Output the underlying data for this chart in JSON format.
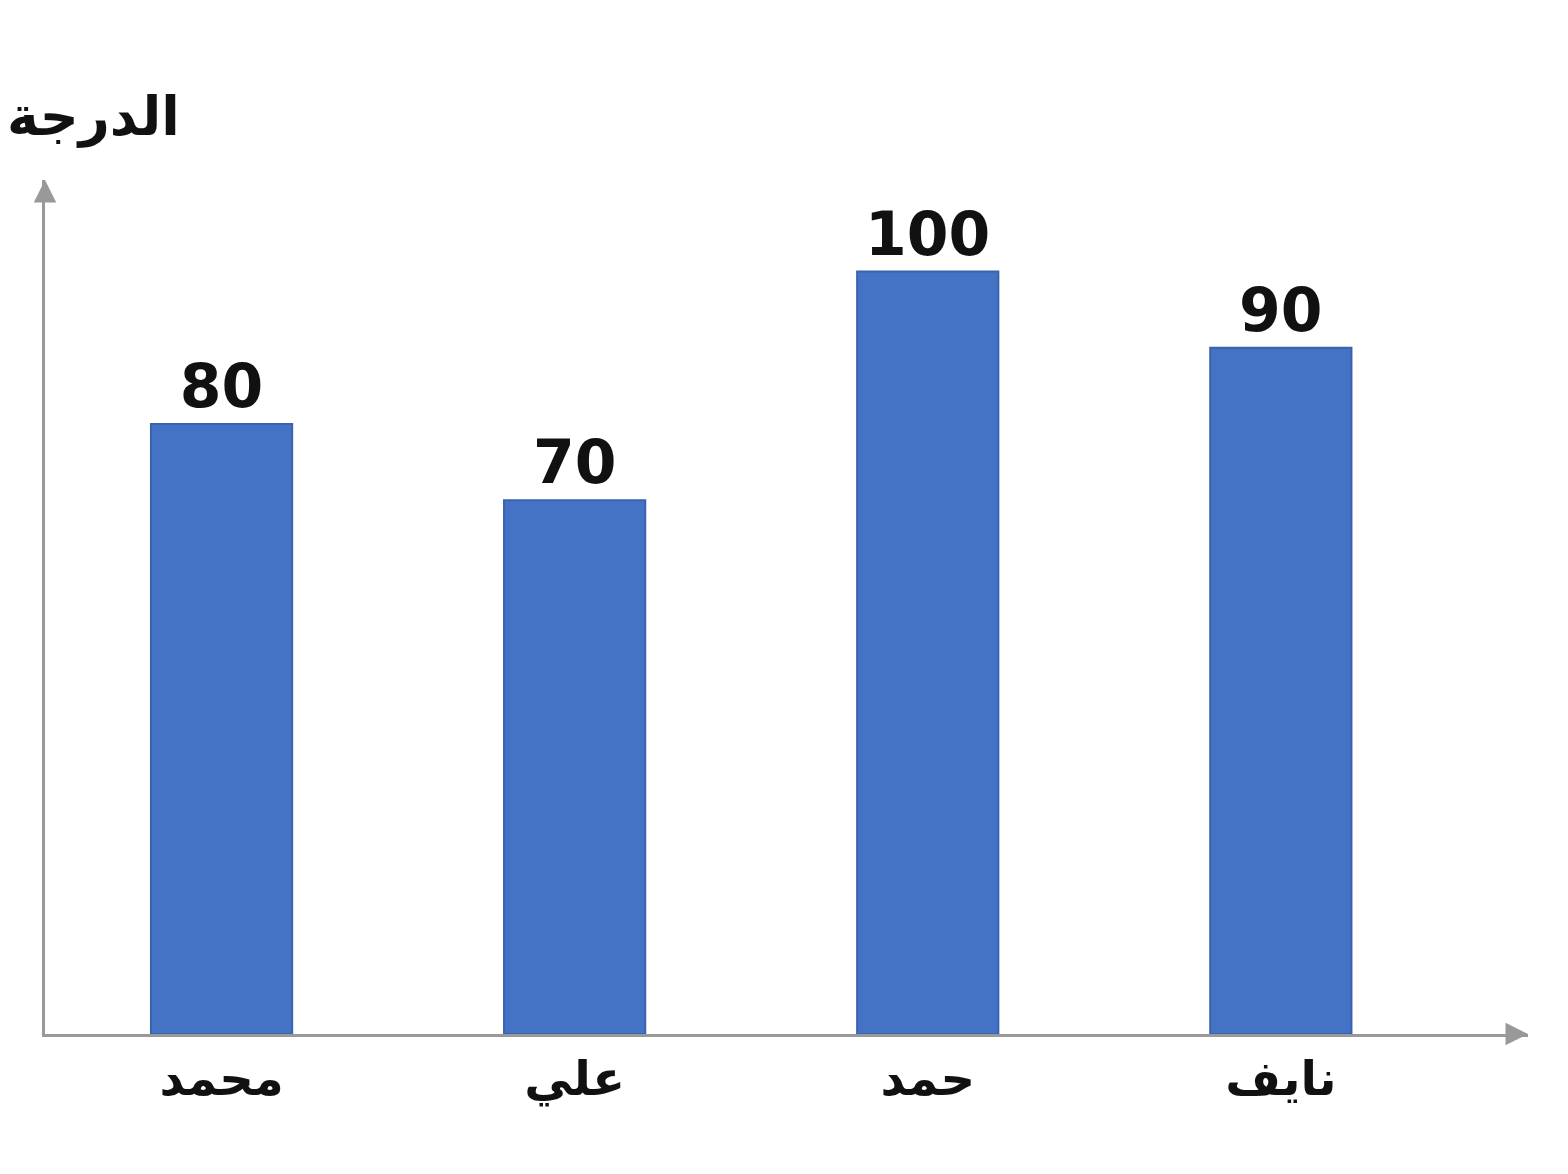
{
  "chart_data": {
    "type": "bar",
    "ylabel": "الدرجة",
    "categories": [
      "محمد",
      "علي",
      "حمد",
      "نايف"
    ],
    "values": [
      80,
      70,
      100,
      90
    ],
    "color": "#4472c4",
    "data_labels": true,
    "legend": false
  }
}
